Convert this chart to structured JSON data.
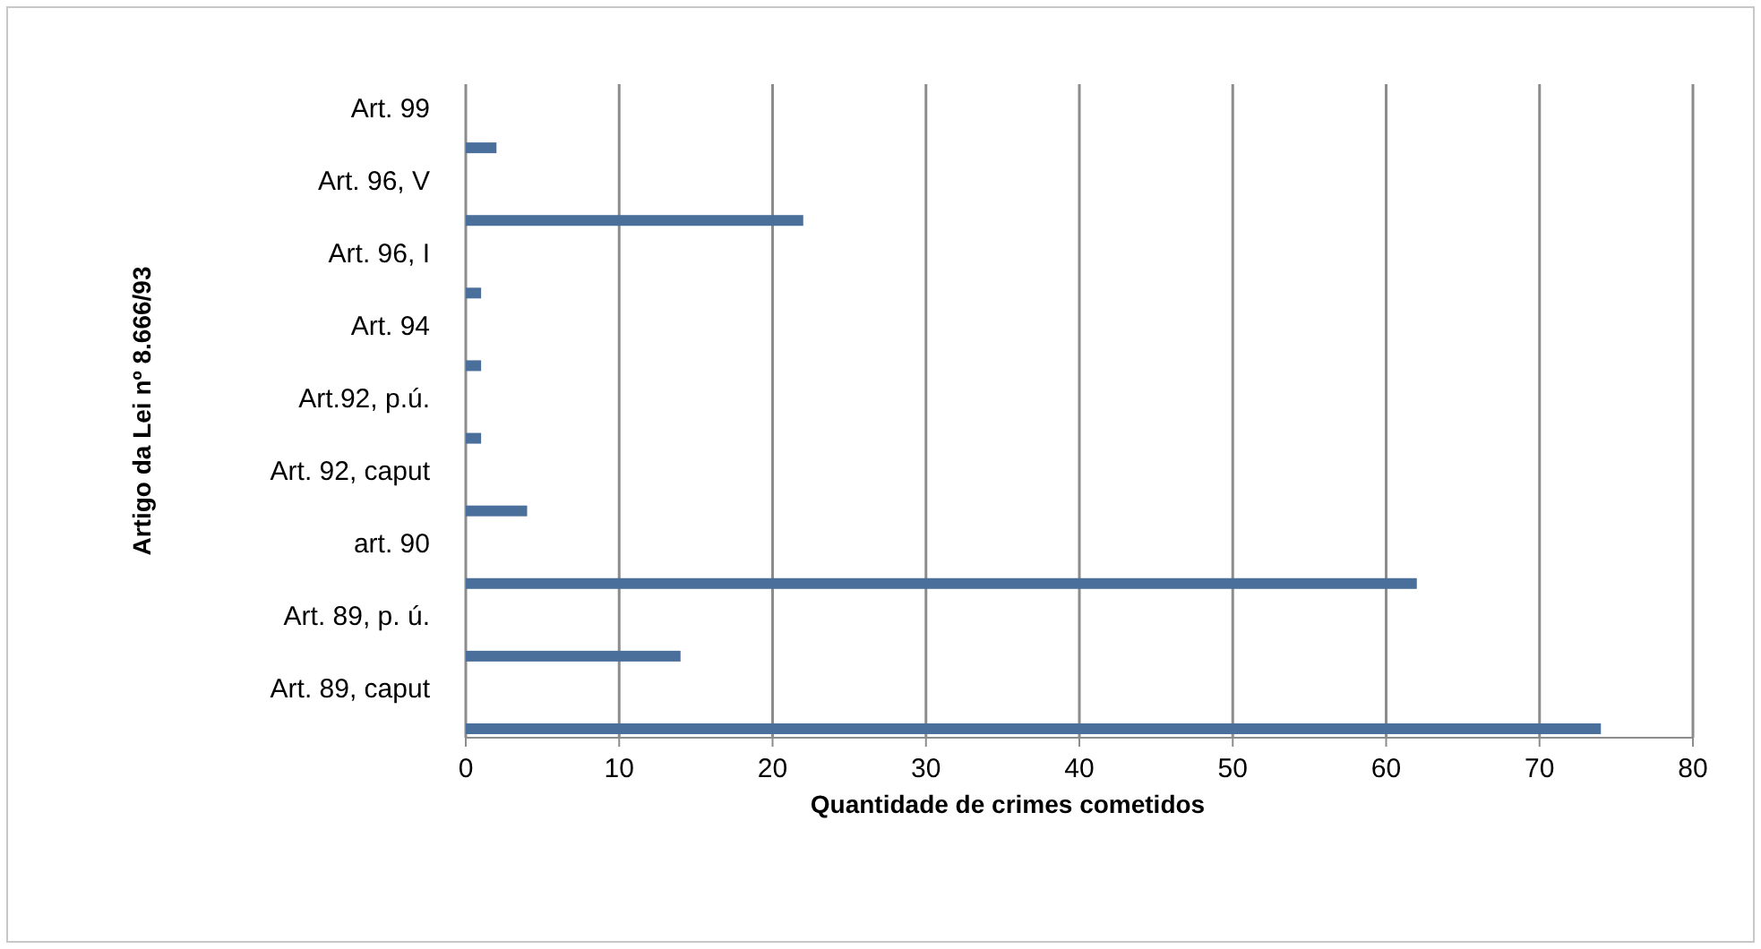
{
  "chart_data": {
    "type": "bar",
    "orientation": "horizontal",
    "xlabel": "Quantidade de  crimes cometidos",
    "ylabel": "Artigo da Lei nº 8.666/93",
    "categories": [
      "Art. 99",
      "Art. 96, V",
      "Art. 96, I",
      "Art. 94",
      "Art.92, p.ú.",
      "Art. 92, caput",
      "art. 90",
      "Art. 89, p. ú.",
      "Art. 89, caput"
    ],
    "values": [
      2,
      22,
      1,
      1,
      1,
      4,
      62,
      14,
      74
    ],
    "color": "#4a6f9a",
    "xlim": [
      0,
      80
    ],
    "xticks": [
      0,
      10,
      20,
      30,
      40,
      50,
      60,
      70,
      80
    ],
    "grid": "x"
  }
}
